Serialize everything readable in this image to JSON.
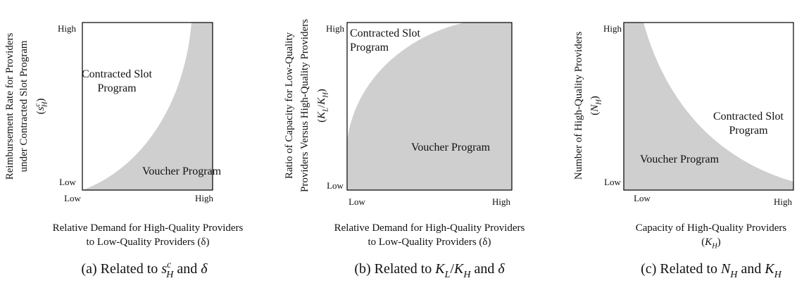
{
  "panels": [
    {
      "y_label": [
        "Reimbursement Rate for Providers",
        "under Contracted Slot Program"
      ],
      "y_symbol": [
        {
          "t": "("
        },
        {
          "t": "s",
          "italic": true
        },
        {
          "t": "c",
          "pos": "sup",
          "italic": true
        },
        {
          "t": "H",
          "pos": "sub",
          "italic": true
        },
        {
          "t": ")"
        }
      ],
      "y_ticks": [
        "High",
        "Low"
      ],
      "x_ticks": [
        "Low",
        "High"
      ],
      "regions": [
        "Contracted Slot",
        "Program",
        "Voucher Program"
      ],
      "x_label": [
        "Relative Demand for High-Quality Providers",
        "to Low-Quality Providers (δ)"
      ],
      "caption": [
        {
          "t": "(a) Related to "
        },
        {
          "t": "s",
          "italic": true
        },
        {
          "t": "c",
          "pos": "sup",
          "italic": true
        },
        {
          "t": "H",
          "pos": "sub",
          "italic": true
        },
        {
          "t": " and "
        },
        {
          "t": "δ",
          "italic": true
        }
      ]
    },
    {
      "y_label": [
        "Ratio of Capacity for Low-Quality",
        "Providers Versus High-Quality Providers"
      ],
      "y_symbol": [
        {
          "t": "("
        },
        {
          "t": "K",
          "italic": true
        },
        {
          "t": "L",
          "pos": "sub",
          "italic": true
        },
        {
          "t": "/"
        },
        {
          "t": "K",
          "italic": true
        },
        {
          "t": "H",
          "pos": "sub",
          "italic": true
        },
        {
          "t": ")"
        }
      ],
      "y_ticks": [
        "High",
        "Low"
      ],
      "x_ticks": [
        "Low",
        "High"
      ],
      "regions": [
        "Contracted Slot",
        "Program",
        "Voucher Program"
      ],
      "x_label": [
        "Relative Demand for High-Quality Providers",
        "to Low-Quality Providers (δ)"
      ],
      "caption": [
        {
          "t": "(b) Related to "
        },
        {
          "t": "K",
          "italic": true
        },
        {
          "t": "L",
          "pos": "sub",
          "italic": true
        },
        {
          "t": "/"
        },
        {
          "t": "K",
          "italic": true
        },
        {
          "t": "H",
          "pos": "sub",
          "italic": true
        },
        {
          "t": " and "
        },
        {
          "t": "δ",
          "italic": true
        }
      ]
    },
    {
      "y_label": [
        "Number of High-Quality Providers"
      ],
      "y_symbol": [
        {
          "t": "("
        },
        {
          "t": "N",
          "italic": true
        },
        {
          "t": "H",
          "pos": "sub",
          "italic": true
        },
        {
          "t": ")"
        }
      ],
      "y_ticks": [
        "High",
        "Low"
      ],
      "x_ticks": [
        "Low",
        "High"
      ],
      "regions": [
        "Contracted Slot",
        "Program",
        "Voucher Program"
      ],
      "x_label": [
        "Capacity of High-Quality Providers"
      ],
      "x_symbol": [
        {
          "t": "("
        },
        {
          "t": "K",
          "italic": true
        },
        {
          "t": "H",
          "pos": "sub",
          "italic": true
        },
        {
          "t": ")"
        }
      ],
      "caption": [
        {
          "t": "(c) Related to "
        },
        {
          "t": "N",
          "italic": true
        },
        {
          "t": "H",
          "pos": "sub",
          "italic": true
        },
        {
          "t": " and "
        },
        {
          "t": "K",
          "italic": true
        },
        {
          "t": "H",
          "pos": "sub",
          "italic": true
        }
      ]
    }
  ]
}
